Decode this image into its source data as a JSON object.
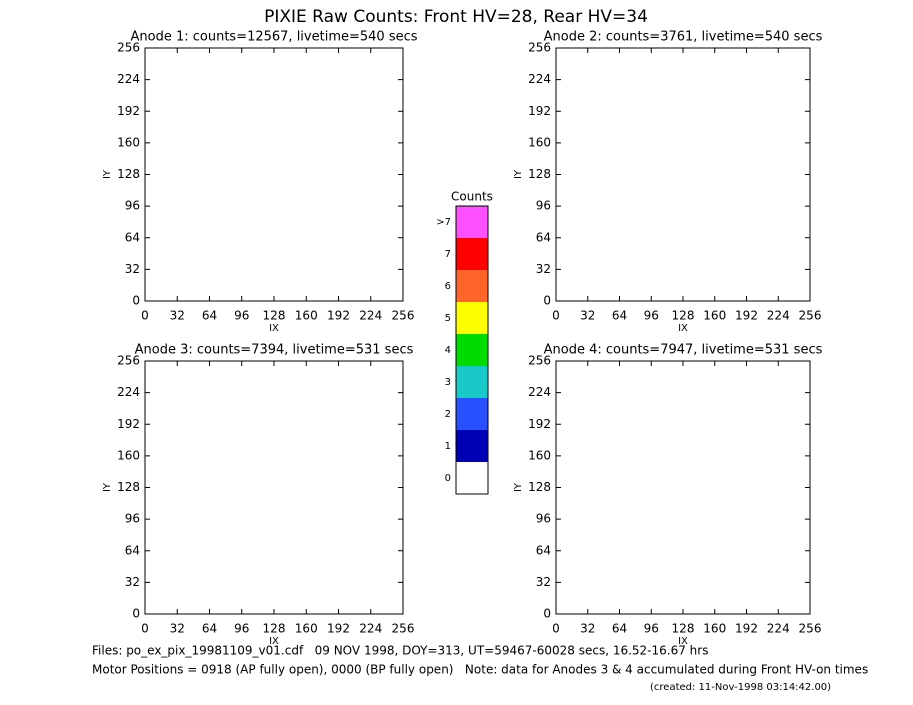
{
  "title": "PIXIE Raw Counts:  Front HV=28, Rear HV=34",
  "chart_data": [
    {
      "type": "image",
      "title": "Anode 1: counts=12567, livetime=540 secs",
      "xlabel": "IX",
      "ylabel": "IY",
      "xlim": [
        0,
        256
      ],
      "ylim": [
        0,
        256
      ],
      "xticks": [
        0,
        32,
        64,
        96,
        128,
        160,
        192,
        224,
        256
      ],
      "yticks": [
        0,
        32,
        64,
        96,
        128,
        160,
        192,
        224,
        256
      ]
    },
    {
      "type": "image",
      "title": "Anode 2: counts=3761, livetime=540 secs",
      "xlabel": "IX",
      "ylabel": "IY",
      "xlim": [
        0,
        256
      ],
      "ylim": [
        0,
        256
      ],
      "xticks": [
        0,
        32,
        64,
        96,
        128,
        160,
        192,
        224,
        256
      ],
      "yticks": [
        0,
        32,
        64,
        96,
        128,
        160,
        192,
        224,
        256
      ]
    },
    {
      "type": "image",
      "title": "Anode 3: counts=7394, livetime=531 secs",
      "xlabel": "IX",
      "ylabel": "IY",
      "xlim": [
        0,
        256
      ],
      "ylim": [
        0,
        256
      ],
      "xticks": [
        0,
        32,
        64,
        96,
        128,
        160,
        192,
        224,
        256
      ],
      "yticks": [
        0,
        32,
        64,
        96,
        128,
        160,
        192,
        224,
        256
      ]
    },
    {
      "type": "image",
      "title": "Anode 4: counts=7947, livetime=531 secs",
      "xlabel": "IX",
      "ylabel": "IY",
      "xlim": [
        0,
        256
      ],
      "ylim": [
        0,
        256
      ],
      "xticks": [
        0,
        32,
        64,
        96,
        128,
        160,
        192,
        224,
        256
      ],
      "yticks": [
        0,
        32,
        64,
        96,
        128,
        160,
        192,
        224,
        256
      ]
    }
  ],
  "colorbar": {
    "title": "Counts",
    "levels": [
      {
        "label": "0",
        "color": "#ffffff"
      },
      {
        "label": "1",
        "color": "#0000b4"
      },
      {
        "label": "2",
        "color": "#2850ff"
      },
      {
        "label": "3",
        "color": "#19c8c8"
      },
      {
        "label": "4",
        "color": "#00dc00"
      },
      {
        "label": "5",
        "color": "#ffff00"
      },
      {
        "label": "6",
        "color": "#ff6428"
      },
      {
        "label": "7",
        "color": "#ff0000"
      },
      {
        "label": ">7",
        "color": "#ff50ff"
      }
    ]
  },
  "footer": [
    "Files: po_ex_pix_19981109_v01.cdf   09 NOV 1998, DOY=313, UT=59467-60028 secs, 16.52-16.67 hrs",
    "Motor Positions = 0918 (AP fully open), 0000 (BP fully open)   Note: data for Anodes 3 & 4 accumulated during Front HV-on times",
    "(created: 11-Nov-1998 03:14:42.00)"
  ]
}
